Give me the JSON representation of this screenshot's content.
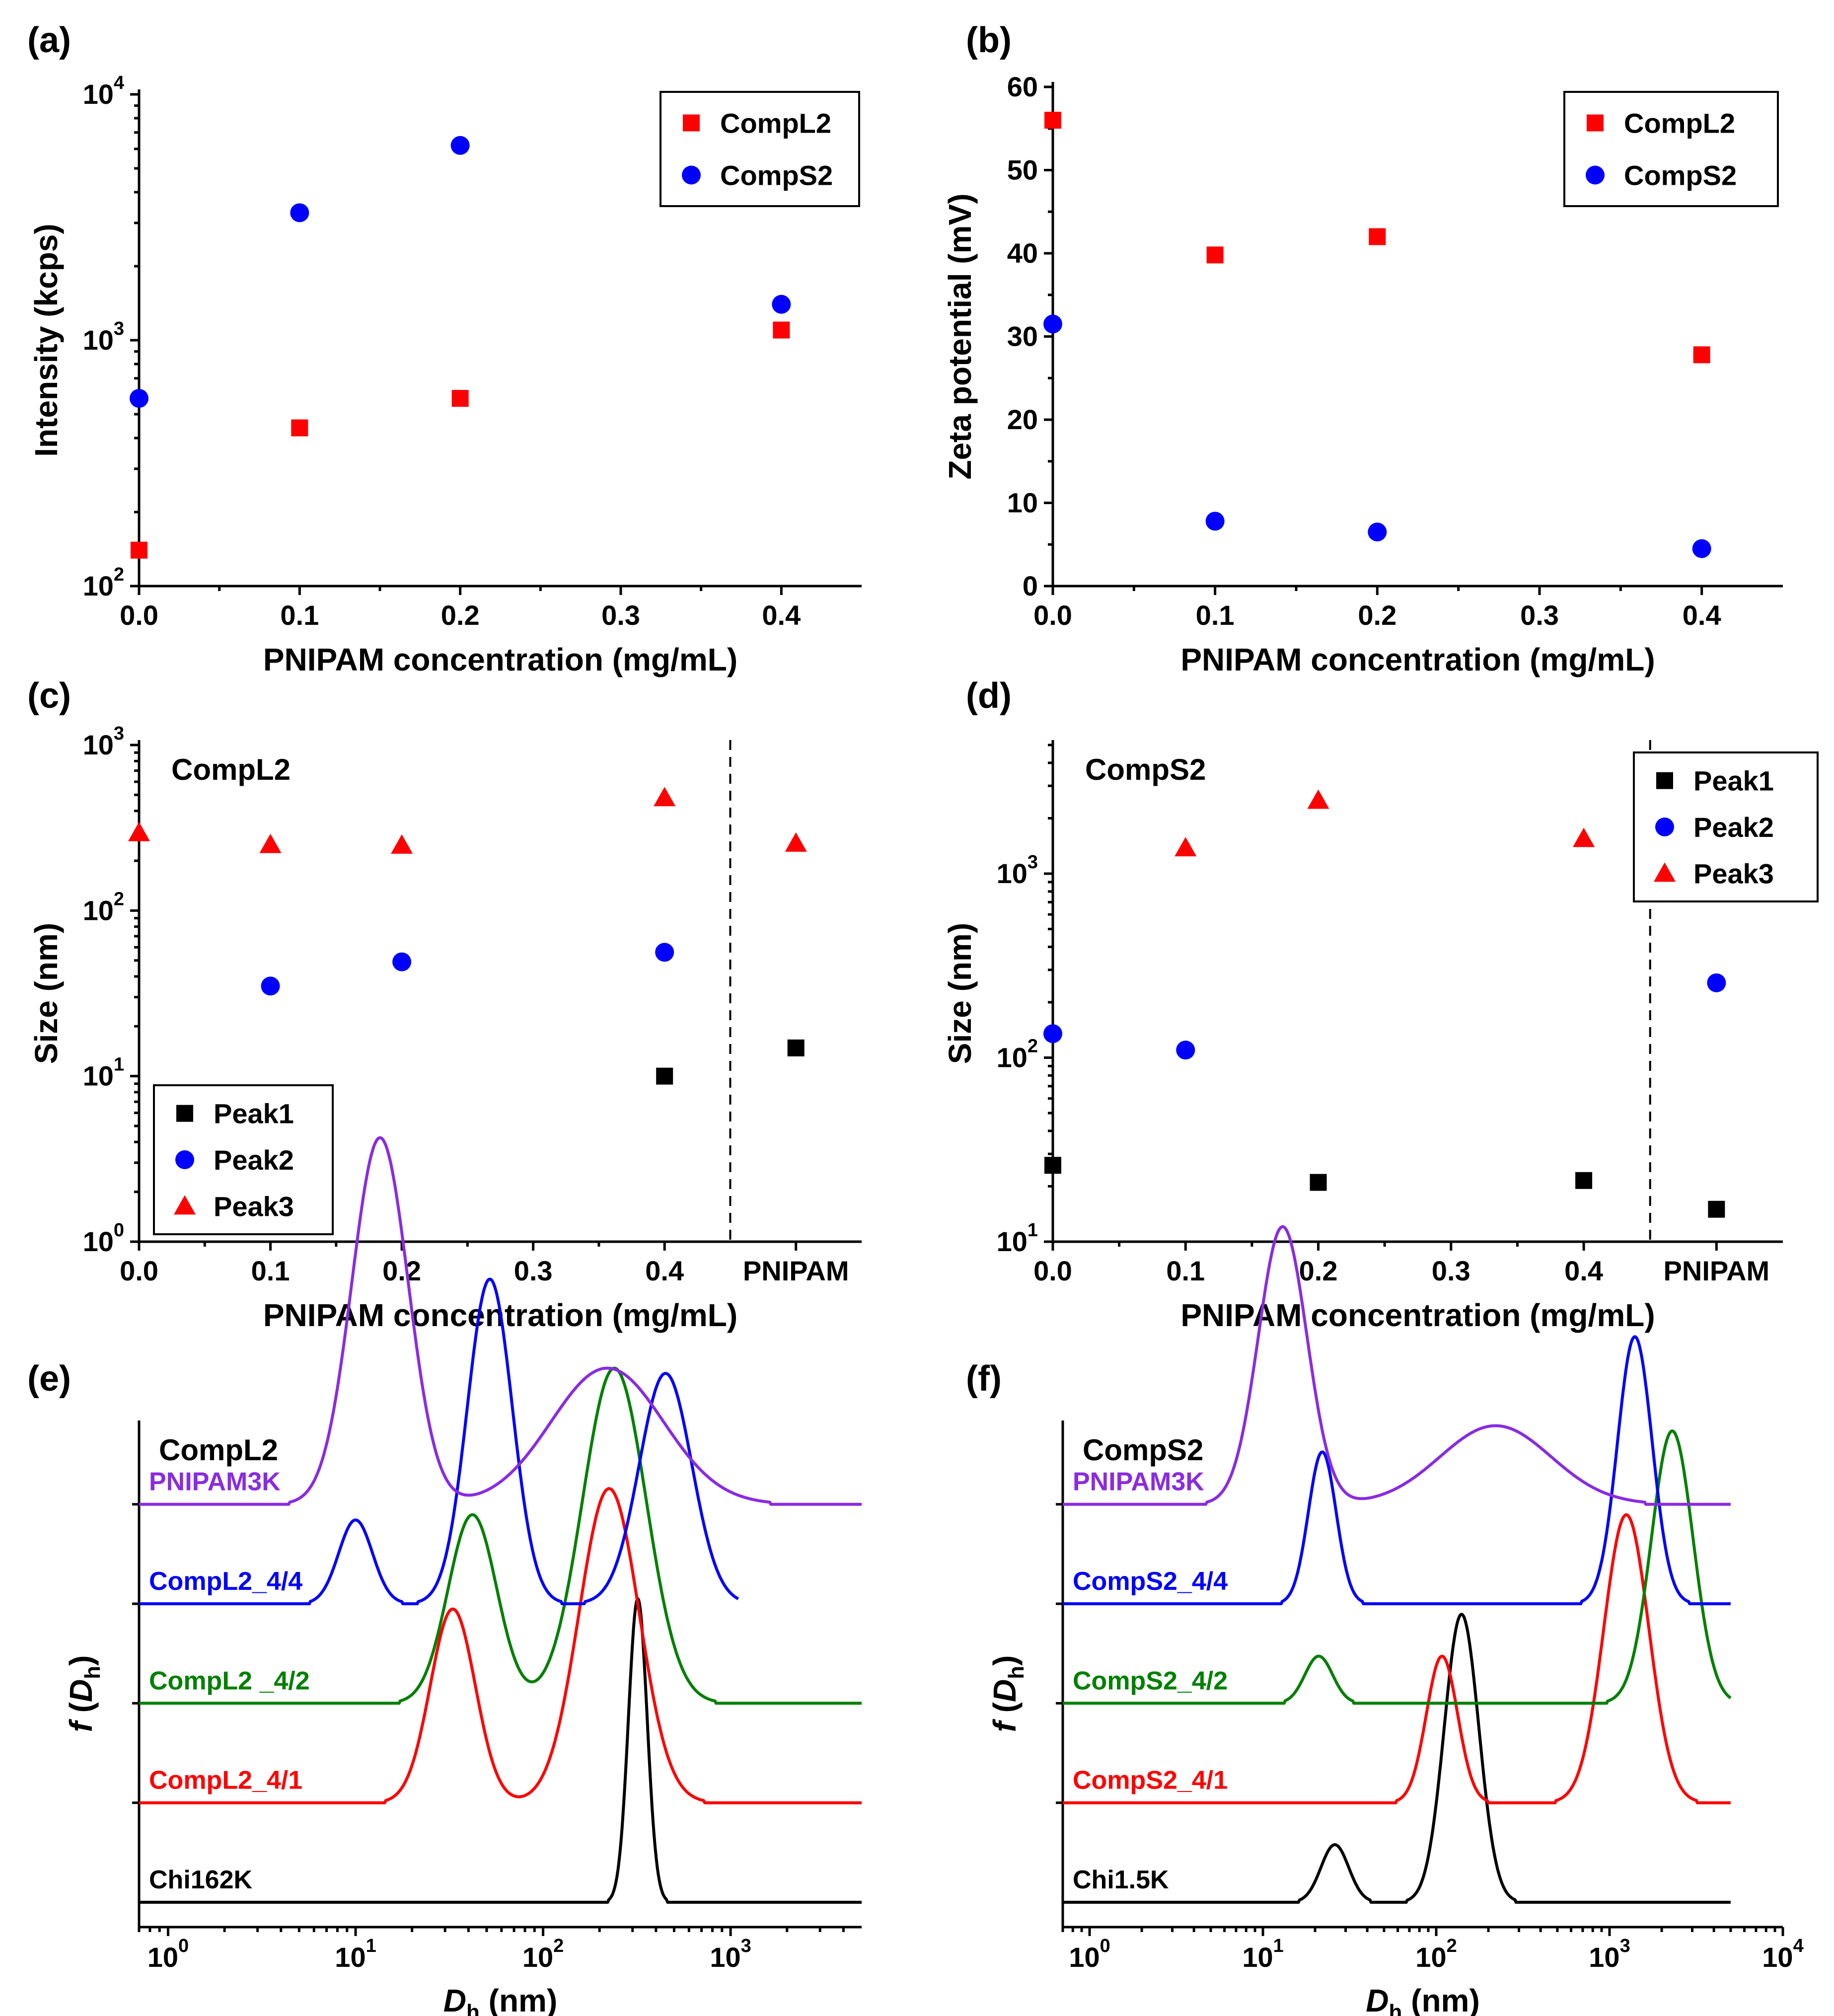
{
  "colors": {
    "red": "#ff0000",
    "blue": "#0000ff",
    "black": "#000000",
    "green": "#008000",
    "purple": "#8a2be2"
  },
  "panels": [
    {
      "id": "a",
      "label": "(a)",
      "type": "scatter",
      "xlabel": "PNIPAM concentration (mg/mL)",
      "ylabel": "Intensity (kcps)",
      "xlim": [
        0,
        0.45
      ],
      "xticks": [
        0,
        0.1,
        0.2,
        0.3,
        0.4
      ],
      "xticklabels": [
        "0.0",
        "0.1",
        "0.2",
        "0.3",
        "0.4"
      ],
      "yscale": "log",
      "ylim": [
        100,
        10000
      ],
      "yticks": [
        {
          "v": 100,
          "b": "10",
          "e": "2"
        },
        {
          "v": 1000,
          "b": "10",
          "e": "3"
        },
        {
          "v": 10000,
          "b": "10",
          "e": "4"
        }
      ],
      "legend_position": "top-right",
      "series": [
        {
          "name": "CompL2",
          "marker": "square",
          "color": "#ff0000",
          "x": [
            0,
            0.1,
            0.2,
            0.4
          ],
          "y": [
            140,
            440,
            580,
            1100
          ]
        },
        {
          "name": "CompS2",
          "marker": "circle",
          "color": "#0000ff",
          "x": [
            0,
            0.1,
            0.2,
            0.4
          ],
          "y": [
            580,
            3300,
            6200,
            1400
          ]
        }
      ]
    },
    {
      "id": "b",
      "label": "(b)",
      "type": "scatter",
      "xlabel": "PNIPAM concentration (mg/mL)",
      "ylabel": "Zeta potential (mV)",
      "xlim": [
        0,
        0.45
      ],
      "xticks": [
        0,
        0.1,
        0.2,
        0.3,
        0.4
      ],
      "xticklabels": [
        "0.0",
        "0.1",
        "0.2",
        "0.3",
        "0.4"
      ],
      "yscale": "linear",
      "ylim": [
        0,
        60
      ],
      "yticks": [
        {
          "v": 0,
          "t": "0"
        },
        {
          "v": 10,
          "t": "10"
        },
        {
          "v": 20,
          "t": "20"
        },
        {
          "v": 30,
          "t": "30"
        },
        {
          "v": 40,
          "t": "40"
        },
        {
          "v": 50,
          "t": "50"
        },
        {
          "v": 60,
          "t": "60"
        }
      ],
      "legend_position": "top-right",
      "series": [
        {
          "name": "CompL2",
          "marker": "square",
          "color": "#ff0000",
          "x": [
            0,
            0.1,
            0.2,
            0.4
          ],
          "y": [
            56,
            39.8,
            42,
            27.8
          ]
        },
        {
          "name": "CompS2",
          "marker": "circle",
          "color": "#0000ff",
          "x": [
            0,
            0.1,
            0.2,
            0.4
          ],
          "y": [
            31.5,
            7.8,
            6.5,
            4.5
          ]
        }
      ]
    },
    {
      "id": "c",
      "label": "(c)",
      "type": "scatter",
      "annotation": "CompL2",
      "xlabel": "PNIPAM concentration (mg/mL)",
      "ylabel": "Size (nm)",
      "xlim": [
        0,
        0.55
      ],
      "xticks": [
        0,
        0.1,
        0.2,
        0.3,
        0.4,
        0.5
      ],
      "xticklabels": [
        "0.0",
        "0.1",
        "0.2",
        "0.3",
        "0.4",
        "PNIPAM"
      ],
      "divider_x": 0.45,
      "yscale": "log",
      "ylim": [
        1,
        1000
      ],
      "yticks": [
        {
          "v": 1,
          "b": "10",
          "e": "0"
        },
        {
          "v": 10,
          "b": "10",
          "e": "1"
        },
        {
          "v": 100,
          "b": "10",
          "e": "2"
        },
        {
          "v": 1000,
          "b": "10",
          "e": "3"
        }
      ],
      "legend_position": "bottom-left",
      "series": [
        {
          "name": "Peak1",
          "marker": "square",
          "color": "#000000",
          "x": [
            0.4,
            0.5
          ],
          "y": [
            10,
            14.8
          ]
        },
        {
          "name": "Peak2",
          "marker": "circle",
          "color": "#0000ff",
          "x": [
            0.1,
            0.2,
            0.4
          ],
          "y": [
            35,
            49,
            56
          ]
        },
        {
          "name": "Peak3",
          "marker": "triangle",
          "color": "#ff0000",
          "x": [
            0,
            0.1,
            0.2,
            0.4,
            0.5
          ],
          "y": [
            295,
            250,
            248,
            480,
            255
          ]
        }
      ]
    },
    {
      "id": "d",
      "label": "(d)",
      "type": "scatter",
      "annotation": "CompS2",
      "xlabel": "PNIPAM concentration (mg/mL)",
      "ylabel": "Size (nm)",
      "xlim": [
        0,
        0.55
      ],
      "xticks": [
        0,
        0.1,
        0.2,
        0.3,
        0.4,
        0.5
      ],
      "xticklabels": [
        "0.0",
        "0.1",
        "0.2",
        "0.3",
        "0.4",
        "PNIPAM"
      ],
      "divider_x": 0.45,
      "yscale": "log",
      "ylim": [
        10,
        5000
      ],
      "yticks": [
        {
          "v": 10,
          "b": "10",
          "e": "1"
        },
        {
          "v": 100,
          "b": "10",
          "e": "2"
        },
        {
          "v": 1000,
          "b": "10",
          "e": "3"
        }
      ],
      "legend_position": "top-right",
      "series": [
        {
          "name": "Peak1",
          "marker": "square",
          "color": "#000000",
          "x": [
            0,
            0.2,
            0.4,
            0.5
          ],
          "y": [
            26,
            21,
            21.5,
            15
          ]
        },
        {
          "name": "Peak2",
          "marker": "circle",
          "color": "#0000ff",
          "x": [
            0,
            0.1,
            0.5
          ],
          "y": [
            135,
            110,
            255
          ]
        },
        {
          "name": "Peak3",
          "marker": "triangle",
          "color": "#ff0000",
          "x": [
            0.1,
            0.2,
            0.4
          ],
          "y": [
            1380,
            2500,
            1550
          ]
        }
      ]
    },
    {
      "id": "e",
      "label": "(e)",
      "type": "line",
      "annotation": "CompL2",
      "xlabel_italic": "D",
      "xlabel_sub": "h",
      "xlabel_rest": " (nm)",
      "ylabel_italic": "f",
      "ylabel_mid": " (",
      "ylabel_sub_base": "D",
      "ylabel_sub": "h",
      "ylabel_end": ")",
      "xscale": "log",
      "xlim": [
        0.7,
        5000
      ],
      "xticks": [
        {
          "v": 1,
          "b": "10",
          "e": "0"
        },
        {
          "v": 10,
          "b": "10",
          "e": "1"
        },
        {
          "v": 100,
          "b": "10",
          "e": "2"
        },
        {
          "v": 1000,
          "b": "10",
          "e": "3"
        }
      ],
      "ylim": [
        0,
        4.6
      ],
      "y_minor_ticks": [
        0.95,
        1.9,
        2.85,
        3.8
      ],
      "series": [
        {
          "name": "Chi162K",
          "color": "#000000",
          "baseline": 0,
          "xrange": [
            0.7,
            5000
          ],
          "peaks": [
            {
              "mu": 320,
              "width": 0.05,
              "amp": 2.9
            }
          ]
        },
        {
          "name": "CompL2_4/1",
          "color": "#ff0000",
          "baseline": 0.95,
          "xrange": [
            0.7,
            5000
          ],
          "peaks": [
            {
              "mu": 33,
              "width": 0.12,
              "amp": 1.85
            },
            {
              "mu": 225,
              "width": 0.16,
              "amp": 3.0
            }
          ]
        },
        {
          "name": "CompL2 _4/2",
          "color": "#008000",
          "baseline": 1.9,
          "xrange": [
            0.7,
            5000
          ],
          "peaks": [
            {
              "mu": 42,
              "width": 0.13,
              "amp": 1.8
            },
            {
              "mu": 240,
              "width": 0.17,
              "amp": 3.2
            }
          ]
        },
        {
          "name": "CompL2_4/4",
          "color": "#0000ff",
          "baseline": 2.85,
          "xrange": [
            0.7,
            1100
          ],
          "peaks": [
            {
              "mu": 10,
              "width": 0.09,
              "amp": 0.8
            },
            {
              "mu": 52,
              "width": 0.12,
              "amp": 3.1
            },
            {
              "mu": 450,
              "width": 0.14,
              "amp": 2.2
            }
          ]
        },
        {
          "name": "PNIPAM3K",
          "color": "#8a2be2",
          "baseline": 3.8,
          "xrange": [
            0.7,
            5000
          ],
          "peaks": [
            {
              "mu": 13.5,
              "width": 0.15,
              "amp": 3.5
            },
            {
              "mu": 220,
              "width": 0.3,
              "amp": 1.3
            }
          ]
        }
      ]
    },
    {
      "id": "f",
      "label": "(f)",
      "type": "line",
      "annotation": "CompS2",
      "xlabel_italic": "D",
      "xlabel_sub": "h",
      "xlabel_rest": " (nm)",
      "ylabel_italic": "f",
      "ylabel_mid": " (",
      "ylabel_sub_base": "D",
      "ylabel_sub": "h",
      "ylabel_end": ")",
      "xscale": "log",
      "xlim": [
        0.7,
        10000
      ],
      "xticks": [
        {
          "v": 1,
          "b": "10",
          "e": "0"
        },
        {
          "v": 10,
          "b": "10",
          "e": "1"
        },
        {
          "v": 100,
          "b": "10",
          "e": "2"
        },
        {
          "v": 1000,
          "b": "10",
          "e": "3"
        },
        {
          "v": 10000,
          "b": "10",
          "e": "4"
        }
      ],
      "ylim": [
        0,
        4.6
      ],
      "y_minor_ticks": [
        0.95,
        1.9,
        2.85,
        3.8
      ],
      "series": [
        {
          "name": "Chi1.5K",
          "color": "#000000",
          "baseline": 0,
          "xrange": [
            0.7,
            5000
          ],
          "peaks": [
            {
              "mu": 26,
              "width": 0.08,
              "amp": 0.55
            },
            {
              "mu": 140,
              "width": 0.1,
              "amp": 2.75
            }
          ]
        },
        {
          "name": "CompS2_4/1",
          "color": "#ff0000",
          "baseline": 0.95,
          "xrange": [
            0.7,
            5000
          ],
          "peaks": [
            {
              "mu": 108,
              "width": 0.09,
              "amp": 1.4
            },
            {
              "mu": 1250,
              "width": 0.13,
              "amp": 2.75
            }
          ]
        },
        {
          "name": "CompS2_4/2",
          "color": "#008000",
          "baseline": 1.9,
          "xrange": [
            0.7,
            5000
          ],
          "peaks": [
            {
              "mu": 21,
              "width": 0.08,
              "amp": 0.45
            },
            {
              "mu": 2300,
              "width": 0.12,
              "amp": 2.6
            }
          ]
        },
        {
          "name": "CompS2_4/4",
          "color": "#0000ff",
          "baseline": 2.85,
          "xrange": [
            0.7,
            5000
          ],
          "peaks": [
            {
              "mu": 22,
              "width": 0.08,
              "amp": 1.45
            },
            {
              "mu": 1400,
              "width": 0.1,
              "amp": 2.55
            }
          ]
        },
        {
          "name": "PNIPAM3K",
          "color": "#8a2be2",
          "baseline": 3.8,
          "xrange": [
            0.7,
            5000
          ],
          "peaks": [
            {
              "mu": 13,
              "width": 0.14,
              "amp": 2.65
            },
            {
              "mu": 220,
              "width": 0.32,
              "amp": 0.75
            }
          ]
        }
      ]
    }
  ]
}
